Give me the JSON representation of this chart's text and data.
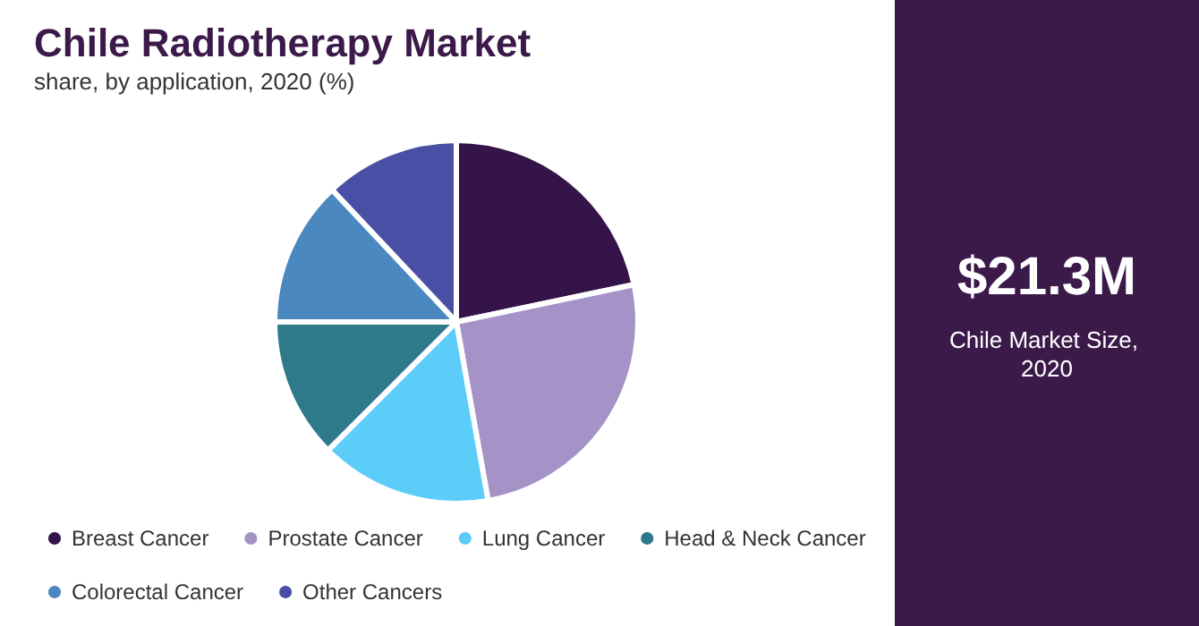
{
  "chart_data": {
    "type": "pie",
    "title": "Chile Radiotherapy Market",
    "subtitle": "share, by application, 2020 (%)",
    "categories": [
      "Breast Cancer",
      "Prostate Cancer",
      "Lung Cancer",
      "Head & Neck Cancer",
      "Colorectal Cancer",
      "Other Cancers"
    ],
    "values": [
      21.7,
      25.5,
      15.3,
      12.5,
      13,
      12
    ],
    "colors": [
      "#35144a",
      "#a593c8",
      "#5bcdf8",
      "#2e7a8a",
      "#4b88c0",
      "#4a4fa6"
    ],
    "legend": "bottom",
    "annotations": [
      "$21.3M",
      "Chile Market Size, 2020"
    ]
  }
}
